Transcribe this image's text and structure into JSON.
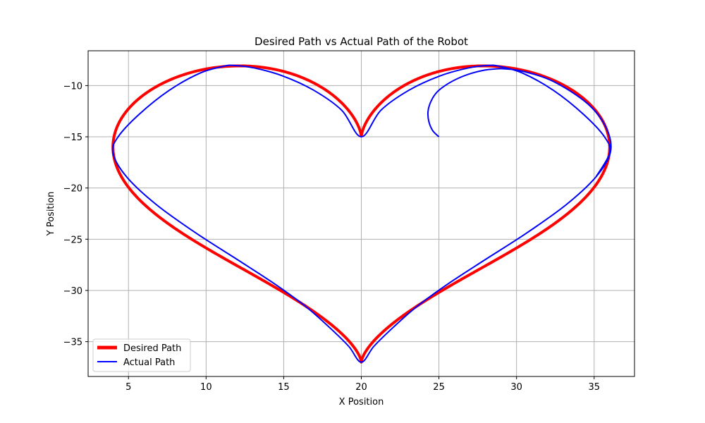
{
  "chart_data": {
    "type": "line",
    "title": "Desired Path vs Actual Path of the Robot",
    "xlabel": "X Position",
    "ylabel": "Y Position",
    "xlim": [
      2.4,
      37.6
    ],
    "ylim": [
      -38.4,
      -6.6
    ],
    "xticks": [
      5,
      10,
      15,
      20,
      25,
      30,
      35
    ],
    "yticks": [
      -10,
      -15,
      -20,
      -25,
      -30,
      -35
    ],
    "grid": true,
    "legend_position": "lower-left",
    "series": [
      {
        "name": "Desired Path",
        "color": "#ff0000",
        "curve": "heart",
        "center": [
          20,
          -20
        ],
        "scale": 1,
        "x": [
          20.0,
          21.26,
          23.07,
          25.04,
          26.86,
          28.22,
          28.89,
          30.39,
          32.38,
          34.33,
          35.68,
          36.0,
          35.12,
          33.19,
          30.59,
          27.85,
          25.46,
          23.59,
          22.13,
          20.82,
          20.0,
          19.18,
          17.87,
          16.41,
          14.54,
          12.15,
          9.41,
          6.81,
          4.88,
          4.0,
          4.32,
          5.67,
          7.62,
          9.61,
          11.11,
          11.78,
          13.14,
          14.96,
          16.93,
          18.74,
          20.0
        ],
        "y": [
          -15.0,
          -12.41,
          -10.45,
          -9.07,
          -8.29,
          -8.03,
          -8.12,
          -8.78,
          -10.47,
          -12.83,
          -15.03,
          -16.59,
          -18.91,
          -21.64,
          -24.46,
          -27.12,
          -29.49,
          -31.56,
          -33.5,
          -35.44,
          -37.0,
          -35.44,
          -33.5,
          -31.56,
          -29.49,
          -27.12,
          -24.46,
          -21.64,
          -18.91,
          -16.59,
          -15.03,
          -12.83,
          -10.47,
          -8.78,
          -8.12,
          -8.03,
          -8.29,
          -9.07,
          -10.45,
          -12.41,
          -15.0
        ]
      },
      {
        "name": "Actual Path",
        "color": "#0000ff",
        "x": [
          25.0,
          24.6,
          24.35,
          24.3,
          24.5,
          24.9,
          25.55,
          26.3,
          27.1,
          27.9,
          28.6,
          29.2,
          30.39,
          32.38,
          34.6,
          35.8,
          36.05,
          35.12,
          33.19,
          30.59,
          27.85,
          25.46,
          23.59,
          22.13,
          20.82,
          20.0,
          19.18,
          17.87,
          16.41,
          14.54,
          12.15,
          9.41,
          6.81,
          4.88,
          4.0,
          4.32,
          5.67,
          7.62,
          9.61,
          11.11,
          11.78,
          13.14,
          14.96,
          16.93,
          18.74,
          20.0,
          21.26,
          23.07,
          25.04,
          26.86,
          28.22,
          28.89,
          30.39,
          32.38,
          34.33,
          35.68,
          36.0,
          35.12
        ],
        "y": [
          -15.0,
          -14.4,
          -13.5,
          -12.5,
          -11.5,
          -10.6,
          -9.85,
          -9.25,
          -8.8,
          -8.5,
          -8.38,
          -8.36,
          -8.6,
          -9.6,
          -11.8,
          -14.2,
          -16.5,
          -18.91,
          -21.64,
          -24.46,
          -27.12,
          -29.49,
          -31.56,
          -33.5,
          -35.44,
          -37.0,
          -35.44,
          -33.5,
          -31.56,
          -29.49,
          -27.12,
          -24.46,
          -21.64,
          -18.91,
          -16.59,
          -15.03,
          -12.83,
          -10.47,
          -8.78,
          -8.12,
          -8.03,
          -8.29,
          -9.07,
          -10.45,
          -12.41,
          -15.0,
          -12.41,
          -10.45,
          -9.07,
          -8.29,
          -8.03,
          -8.12,
          -8.78,
          -10.47,
          -12.83,
          -15.03,
          -16.59,
          -18.91
        ]
      }
    ]
  }
}
